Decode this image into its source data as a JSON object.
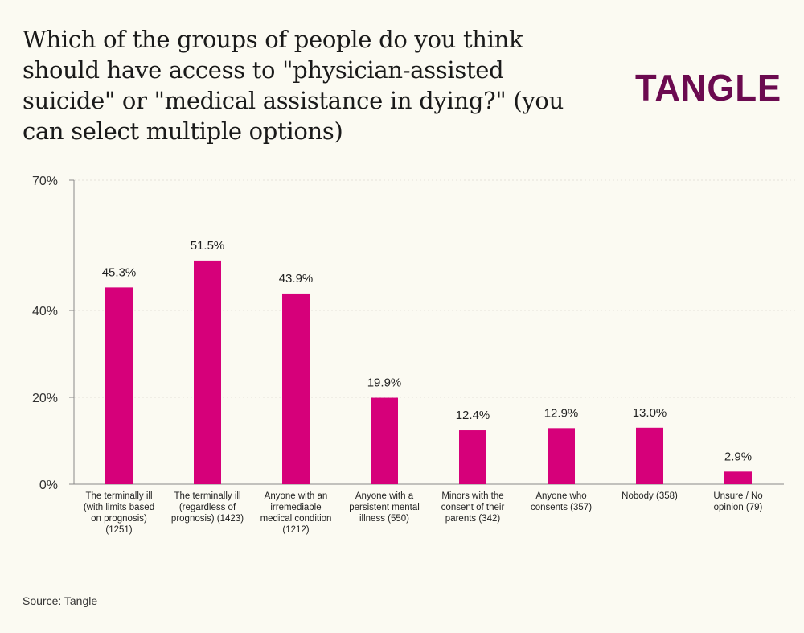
{
  "title": "Which of the groups of people do you think should have access to \"physician-assisted suicide\" or \"medical assistance in dying?\" (you can select multiple options)",
  "logo": "TANGLE",
  "source": "Source: Tangle",
  "colors": {
    "bar": "#d6007a",
    "logo": "#6b0a4f",
    "background": "#fbfaf2"
  },
  "chart_data": {
    "type": "bar",
    "title": "Which of the groups of people do you think should have access to \"physician-assisted suicide\" or \"medical assistance in dying?\" (you can select multiple options)",
    "xlabel": "",
    "ylabel": "",
    "ylim": [
      0,
      70
    ],
    "yticks": [
      0,
      20,
      40,
      70
    ],
    "ytick_labels": [
      "0%",
      "20%",
      "40%",
      "70%"
    ],
    "grid": true,
    "categories": [
      [
        "The terminally ill",
        "(with limits based",
        "on prognosis)",
        "(1251)"
      ],
      [
        "The terminally ill",
        "(regardless of",
        "prognosis) (1423)"
      ],
      [
        "Anyone with an",
        "irremediable",
        "medical condition",
        "(1212)"
      ],
      [
        "Anyone with a",
        "persistent mental",
        "illness (550)"
      ],
      [
        "Minors with the",
        "consent of their",
        "parents (342)"
      ],
      [
        "Anyone who",
        "consents (357)"
      ],
      [
        "Nobody (358)"
      ],
      [
        "Unsure / No",
        "opinion (79)"
      ]
    ],
    "values": [
      45.3,
      51.5,
      43.9,
      19.9,
      12.4,
      12.9,
      13.0,
      2.9
    ],
    "data_labels": [
      "45.3%",
      "51.5%",
      "43.9%",
      "19.9%",
      "12.4%",
      "12.9%",
      "13.0%",
      "2.9%"
    ]
  }
}
